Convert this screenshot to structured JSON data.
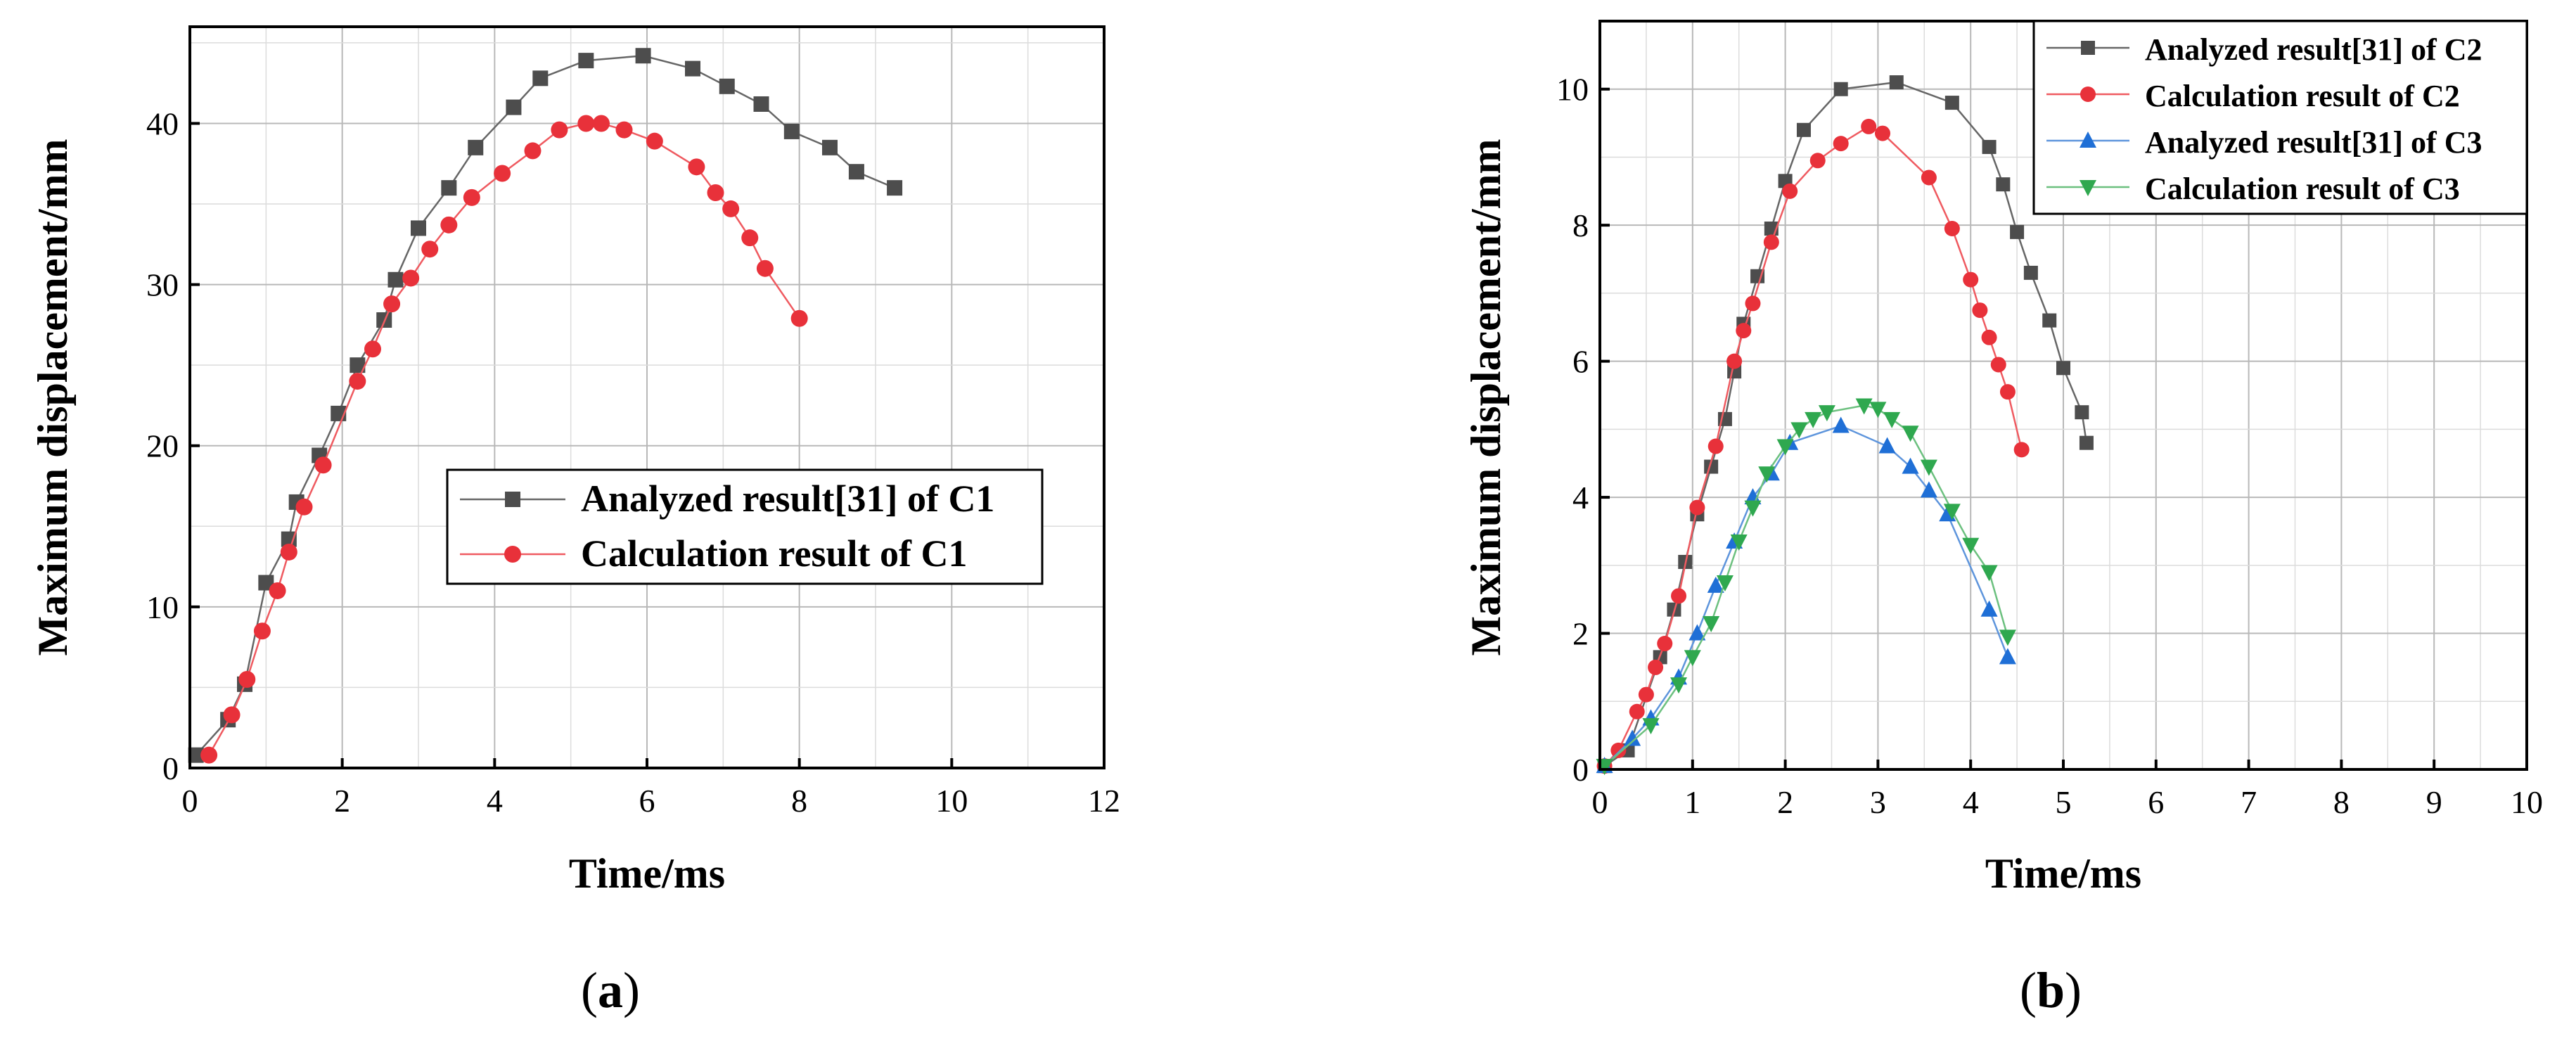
{
  "chart_data": [
    {
      "type": "line",
      "panel": "a",
      "caption_open": "(",
      "caption_letter": "a",
      "caption_close": ")",
      "xlabel": "Time/ms",
      "ylabel": "Maximum displacement/mm",
      "xlim": [
        0,
        12
      ],
      "ylim": [
        0,
        46
      ],
      "xticks": [
        0,
        2,
        4,
        6,
        8,
        10,
        12
      ],
      "yticks": [
        0,
        10,
        20,
        30,
        40
      ],
      "grid": true,
      "legend_position": "center-right",
      "series": [
        {
          "name": "Analyzed result[31] of C1",
          "marker": "square",
          "color": "#4d4d4d",
          "line_color": "#666666",
          "x": [
            0.08,
            0.5,
            0.72,
            1.0,
            1.3,
            1.4,
            1.7,
            1.95,
            2.2,
            2.55,
            2.7,
            3.0,
            3.4,
            3.75,
            4.25,
            4.6,
            5.2,
            5.95,
            6.6,
            7.05,
            7.5,
            7.9,
            8.4,
            8.75,
            9.25
          ],
          "y": [
            0.8,
            3.0,
            5.2,
            11.5,
            14.2,
            16.5,
            19.4,
            22.0,
            25.0,
            27.8,
            30.3,
            33.5,
            36.0,
            38.5,
            41.0,
            42.8,
            43.9,
            44.2,
            43.4,
            42.3,
            41.2,
            39.5,
            38.5,
            37.0,
            36.0
          ]
        },
        {
          "name": "Calculation result of C1",
          "marker": "circle",
          "color": "#e8313a",
          "line_color": "#ef5a60",
          "x": [
            0.25,
            0.55,
            0.75,
            0.95,
            1.15,
            1.3,
            1.5,
            1.75,
            2.2,
            2.4,
            2.65,
            2.9,
            3.15,
            3.4,
            3.7,
            4.1,
            4.5,
            4.85,
            5.2,
            5.4,
            5.7,
            6.1,
            6.65,
            6.9,
            7.1,
            7.35,
            7.55,
            8.0
          ],
          "y": [
            0.8,
            3.3,
            5.5,
            8.5,
            11.0,
            13.4,
            16.2,
            18.8,
            24.0,
            26.0,
            28.8,
            30.4,
            32.2,
            33.7,
            35.4,
            36.9,
            38.3,
            39.6,
            40.0,
            40.0,
            39.6,
            38.9,
            37.3,
            35.7,
            34.7,
            32.9,
            31.0,
            27.9
          ]
        }
      ]
    },
    {
      "type": "line",
      "panel": "b",
      "caption_open": "(",
      "caption_letter": "b",
      "caption_close": ")",
      "xlabel": "Time/ms",
      "ylabel": "Maximum displacement/mm",
      "xlim": [
        0,
        10
      ],
      "ylim": [
        0,
        11
      ],
      "xticks": [
        0,
        1,
        2,
        3,
        4,
        5,
        6,
        7,
        8,
        9,
        10
      ],
      "yticks": [
        0,
        2,
        4,
        6,
        8,
        10
      ],
      "grid": true,
      "legend_position": "top-right",
      "series": [
        {
          "name": "Analyzed result[31] of C2",
          "marker": "square",
          "color": "#4d4d4d",
          "line_color": "#666666",
          "x": [
            0.05,
            0.3,
            0.65,
            0.8,
            0.92,
            1.05,
            1.2,
            1.35,
            1.45,
            1.55,
            1.7,
            1.85,
            2.0,
            2.2,
            2.6,
            3.2,
            3.8,
            4.2,
            4.35,
            4.5,
            4.65,
            4.85,
            5.0,
            5.2,
            5.25
          ],
          "y": [
            0.05,
            0.28,
            1.65,
            2.35,
            3.05,
            3.75,
            4.45,
            5.15,
            5.85,
            6.55,
            7.25,
            7.95,
            8.65,
            9.4,
            10.0,
            10.1,
            9.8,
            9.15,
            8.6,
            7.9,
            7.3,
            6.6,
            5.9,
            5.25,
            4.8
          ]
        },
        {
          "name": "Calculation result of C2",
          "marker": "circle",
          "color": "#e8313a",
          "line_color": "#ef5a60",
          "x": [
            0.05,
            0.2,
            0.4,
            0.5,
            0.6,
            0.7,
            0.85,
            1.05,
            1.25,
            1.45,
            1.55,
            1.65,
            1.85,
            2.05,
            2.35,
            2.6,
            2.9,
            3.05,
            3.55,
            3.8,
            4.0,
            4.1,
            4.2,
            4.3,
            4.4,
            4.55
          ],
          "y": [
            0.05,
            0.28,
            0.85,
            1.1,
            1.5,
            1.85,
            2.55,
            3.85,
            4.75,
            6.0,
            6.45,
            6.85,
            7.75,
            8.5,
            8.95,
            9.2,
            9.45,
            9.35,
            8.7,
            7.95,
            7.2,
            6.75,
            6.35,
            5.95,
            5.55,
            4.7
          ]
        },
        {
          "name": "Analyzed result[31] of C3",
          "marker": "triangle-up",
          "color": "#1f6fd6",
          "line_color": "#5e95dc",
          "x": [
            0.05,
            0.35,
            0.55,
            0.85,
            1.05,
            1.25,
            1.45,
            1.65,
            1.85,
            2.05,
            2.6,
            3.1,
            3.35,
            3.55,
            3.75,
            4.2,
            4.4
          ],
          "y": [
            0.05,
            0.45,
            0.75,
            1.35,
            2.0,
            2.7,
            3.35,
            4.0,
            4.35,
            4.8,
            5.05,
            4.75,
            4.45,
            4.1,
            3.75,
            2.35,
            1.65
          ]
        },
        {
          "name": "Calculation result of C3",
          "marker": "triangle-down",
          "color": "#2fa84f",
          "line_color": "#6cc07f",
          "x": [
            0.05,
            0.55,
            0.85,
            1.0,
            1.2,
            1.35,
            1.5,
            1.65,
            1.8,
            2.0,
            2.15,
            2.3,
            2.45,
            2.85,
            3.0,
            3.15,
            3.35,
            3.55,
            3.8,
            4.0,
            4.2,
            4.4
          ],
          "y": [
            0.05,
            0.65,
            1.25,
            1.65,
            2.15,
            2.75,
            3.35,
            3.85,
            4.35,
            4.75,
            5.0,
            5.15,
            5.25,
            5.35,
            5.3,
            5.15,
            4.95,
            4.45,
            3.8,
            3.3,
            2.9,
            1.95
          ]
        }
      ]
    }
  ]
}
